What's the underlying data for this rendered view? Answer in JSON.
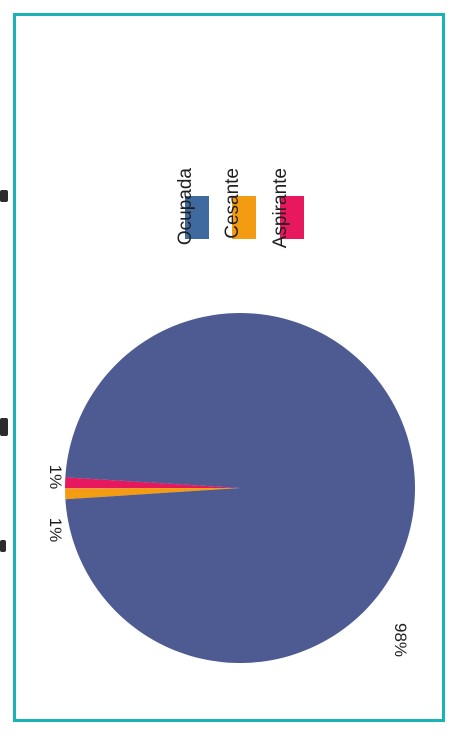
{
  "chart_data": {
    "type": "pie",
    "title": "",
    "orientation": "rotated 90° clockwise",
    "slices": [
      {
        "label": "Ocupada",
        "value": 98,
        "display": "98%",
        "color": "#4e5a92"
      },
      {
        "label": "Cesante",
        "value": 1,
        "display": "1%",
        "color": "#f39c12"
      },
      {
        "label": "Aspirante",
        "value": 1,
        "display": "1%",
        "color": "#e8185e"
      }
    ],
    "legend": {
      "placement": "top",
      "items": [
        {
          "label": "Ocupada",
          "color": "#3f6aa0"
        },
        {
          "label": "Cesante",
          "color": "#f39c12"
        },
        {
          "label": "Aspirante",
          "color": "#e8185e"
        }
      ]
    }
  },
  "colors": {
    "frame_border": "#19b3b5",
    "background": "#ffffff"
  }
}
